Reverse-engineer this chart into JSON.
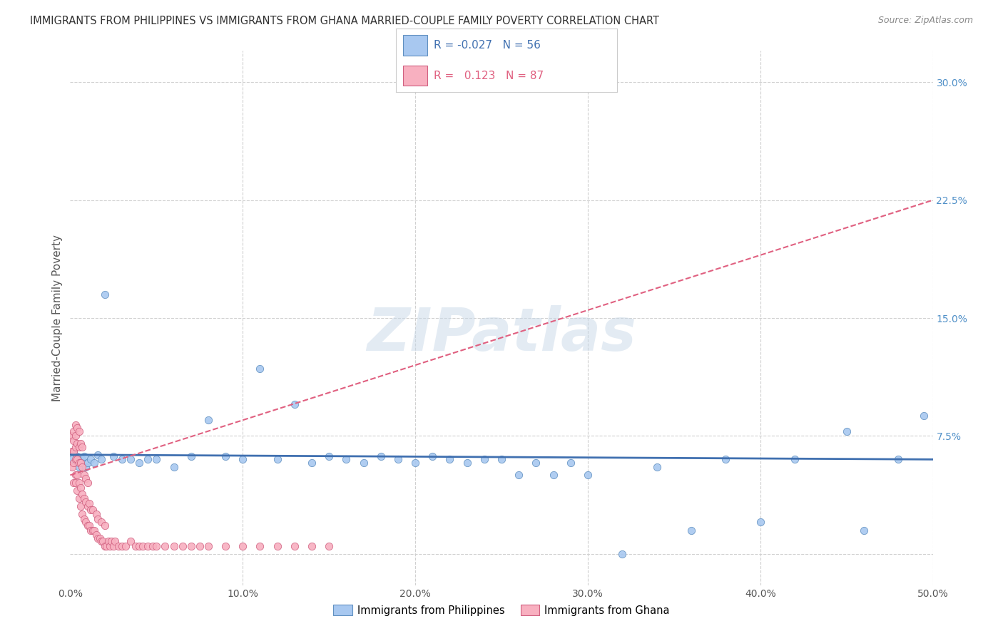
{
  "title": "IMMIGRANTS FROM PHILIPPINES VS IMMIGRANTS FROM GHANA MARRIED-COUPLE FAMILY POVERTY CORRELATION CHART",
  "source": "Source: ZipAtlas.com",
  "ylabel": "Married-Couple Family Poverty",
  "xlim": [
    0.0,
    0.5
  ],
  "ylim": [
    -0.02,
    0.32
  ],
  "xticks": [
    0.0,
    0.1,
    0.2,
    0.3,
    0.4,
    0.5
  ],
  "xtick_labels": [
    "0.0%",
    "10.0%",
    "20.0%",
    "30.0%",
    "40.0%",
    "50.0%"
  ],
  "ytick_positions": [
    0.0,
    0.075,
    0.15,
    0.225,
    0.3
  ],
  "ytick_labels": [
    "",
    "7.5%",
    "15.0%",
    "22.5%",
    "30.0%"
  ],
  "grid_color": "#d0d0d0",
  "background_color": "#ffffff",
  "watermark": "ZIPatlas",
  "philippines": {
    "name": "Immigrants from Philippines",
    "color": "#a8c8f0",
    "edge_color": "#6090c0",
    "trend_color": "#4070b0",
    "trend_style": "solid",
    "R": -0.027,
    "N": 56,
    "x": [
      0.001,
      0.002,
      0.003,
      0.004,
      0.005,
      0.006,
      0.007,
      0.008,
      0.009,
      0.01,
      0.012,
      0.014,
      0.016,
      0.018,
      0.02,
      0.025,
      0.03,
      0.035,
      0.04,
      0.045,
      0.05,
      0.06,
      0.07,
      0.08,
      0.09,
      0.1,
      0.11,
      0.12,
      0.13,
      0.14,
      0.15,
      0.16,
      0.17,
      0.18,
      0.19,
      0.2,
      0.21,
      0.22,
      0.23,
      0.24,
      0.25,
      0.26,
      0.27,
      0.28,
      0.29,
      0.3,
      0.32,
      0.34,
      0.36,
      0.38,
      0.4,
      0.42,
      0.45,
      0.46,
      0.48,
      0.495
    ],
    "y": [
      0.06,
      0.065,
      0.058,
      0.062,
      0.055,
      0.058,
      0.06,
      0.062,
      0.055,
      0.058,
      0.06,
      0.058,
      0.063,
      0.06,
      0.165,
      0.062,
      0.06,
      0.06,
      0.058,
      0.06,
      0.06,
      0.055,
      0.062,
      0.085,
      0.062,
      0.06,
      0.118,
      0.06,
      0.095,
      0.058,
      0.062,
      0.06,
      0.058,
      0.062,
      0.06,
      0.058,
      0.062,
      0.06,
      0.058,
      0.06,
      0.06,
      0.05,
      0.058,
      0.05,
      0.058,
      0.05,
      0.0,
      0.055,
      0.015,
      0.06,
      0.02,
      0.06,
      0.078,
      0.015,
      0.06,
      0.088
    ]
  },
  "ghana": {
    "name": "Immigrants from Ghana",
    "color": "#f8b0c0",
    "edge_color": "#d06080",
    "trend_color": "#e06080",
    "trend_style": "dashed",
    "R": 0.123,
    "N": 87,
    "x": [
      0.001,
      0.001,
      0.001,
      0.002,
      0.002,
      0.002,
      0.002,
      0.002,
      0.003,
      0.003,
      0.003,
      0.003,
      0.003,
      0.003,
      0.004,
      0.004,
      0.004,
      0.004,
      0.004,
      0.005,
      0.005,
      0.005,
      0.005,
      0.005,
      0.006,
      0.006,
      0.006,
      0.006,
      0.007,
      0.007,
      0.007,
      0.007,
      0.008,
      0.008,
      0.008,
      0.009,
      0.009,
      0.009,
      0.01,
      0.01,
      0.01,
      0.011,
      0.011,
      0.012,
      0.012,
      0.013,
      0.013,
      0.014,
      0.015,
      0.015,
      0.016,
      0.016,
      0.017,
      0.018,
      0.018,
      0.019,
      0.02,
      0.02,
      0.021,
      0.022,
      0.023,
      0.024,
      0.025,
      0.026,
      0.028,
      0.03,
      0.032,
      0.035,
      0.038,
      0.04,
      0.042,
      0.045,
      0.048,
      0.05,
      0.055,
      0.06,
      0.065,
      0.07,
      0.075,
      0.08,
      0.09,
      0.1,
      0.11,
      0.12,
      0.13,
      0.14,
      0.15
    ],
    "y": [
      0.055,
      0.065,
      0.075,
      0.045,
      0.058,
      0.065,
      0.072,
      0.078,
      0.045,
      0.05,
      0.06,
      0.068,
      0.075,
      0.082,
      0.04,
      0.05,
      0.06,
      0.07,
      0.08,
      0.035,
      0.045,
      0.058,
      0.068,
      0.078,
      0.03,
      0.042,
      0.058,
      0.07,
      0.025,
      0.038,
      0.055,
      0.068,
      0.022,
      0.035,
      0.05,
      0.02,
      0.033,
      0.048,
      0.018,
      0.03,
      0.045,
      0.018,
      0.032,
      0.015,
      0.028,
      0.015,
      0.028,
      0.015,
      0.012,
      0.025,
      0.01,
      0.022,
      0.01,
      0.008,
      0.02,
      0.008,
      0.005,
      0.018,
      0.005,
      0.008,
      0.005,
      0.008,
      0.005,
      0.008,
      0.005,
      0.005,
      0.005,
      0.008,
      0.005,
      0.005,
      0.005,
      0.005,
      0.005,
      0.005,
      0.005,
      0.005,
      0.005,
      0.005,
      0.005,
      0.005,
      0.005,
      0.005,
      0.005,
      0.005,
      0.005,
      0.005,
      0.005
    ]
  }
}
